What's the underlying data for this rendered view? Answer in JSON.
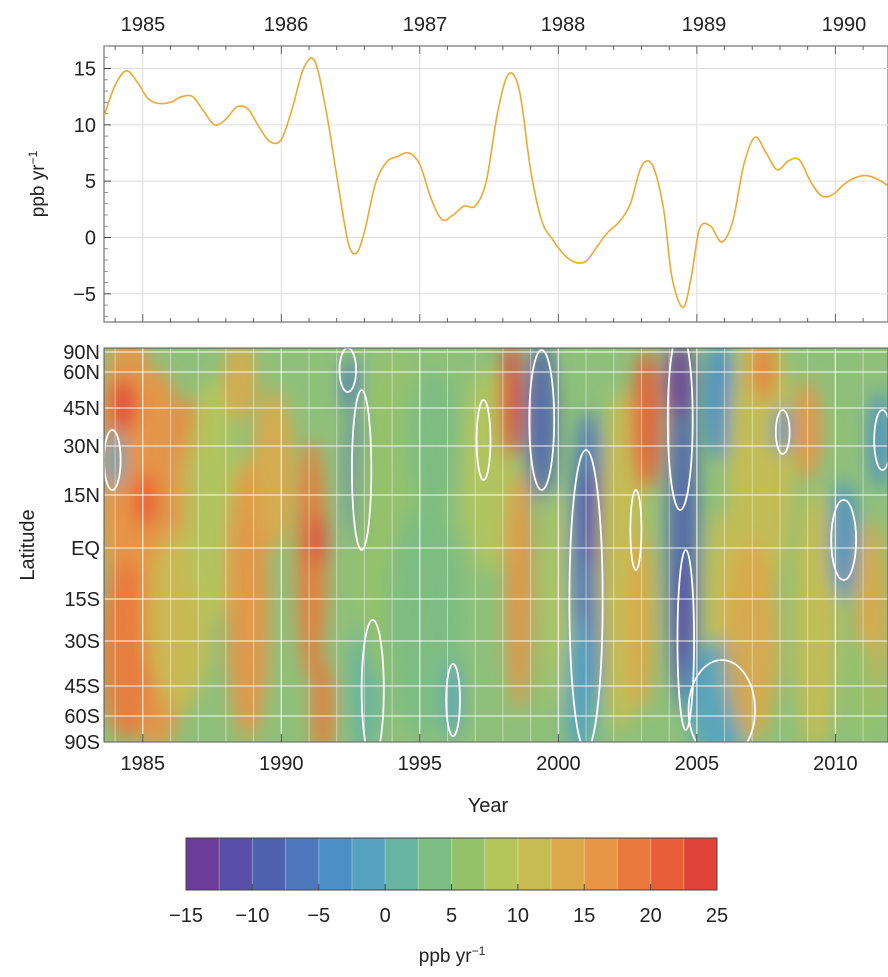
{
  "chart_data": [
    {
      "type": "line",
      "top_axis_label_values": [
        "1985",
        "1986",
        "1987",
        "1988",
        "1989",
        "1990"
      ],
      "ylabel": "ppb yr",
      "ylabel_exponent": "−1",
      "ylim": [
        -7.5,
        17
      ],
      "yticks": [
        "15",
        "10",
        "5",
        "0",
        "−5"
      ],
      "grid": true,
      "line_color": "#f0a830",
      "series": [
        {
          "x": [
            1983.6,
            1984.0,
            1984.4,
            1984.8,
            1985.2,
            1985.6,
            1986.0,
            1986.4,
            1986.8,
            1987.2,
            1987.6,
            1988.0,
            1988.4,
            1988.8,
            1989.2,
            1989.6,
            1990.0,
            1990.4,
            1990.8,
            1991.2,
            1991.6,
            1992.0,
            1992.4,
            1992.7,
            1993.0,
            1993.4,
            1993.8,
            1994.2,
            1994.6,
            1995.0,
            1995.4,
            1995.8,
            1996.2,
            1996.6,
            1997.0,
            1997.4,
            1997.8,
            1998.2,
            1998.6,
            1999.0,
            1999.4,
            1999.8,
            2000.2,
            2000.6,
            2001.0,
            2001.4,
            2001.8,
            2002.2,
            2002.6,
            2003.0,
            2003.4,
            2003.8,
            2004.1,
            2004.5,
            2004.8,
            2005.1,
            2005.5,
            2005.9,
            2006.3,
            2006.7,
            2007.1,
            2007.5,
            2007.9,
            2008.3,
            2008.7,
            2009.1,
            2009.5,
            2009.9,
            2010.3,
            2010.7,
            2011.1,
            2011.5,
            2011.9
          ],
          "values": [
            10.8,
            13.5,
            14.8,
            13.8,
            12.3,
            11.9,
            12.0,
            12.5,
            12.5,
            11.2,
            10.0,
            10.5,
            11.6,
            11.4,
            9.8,
            8.5,
            8.7,
            11.5,
            15.0,
            15.7,
            11.5,
            5.5,
            -0.3,
            -1.4,
            0.5,
            4.8,
            6.7,
            7.2,
            7.5,
            6.5,
            3.5,
            1.6,
            2.0,
            2.8,
            2.8,
            5.0,
            11.0,
            14.5,
            13.0,
            6.0,
            1.5,
            -0.2,
            -1.5,
            -2.2,
            -2.1,
            -0.8,
            0.5,
            1.4,
            3.0,
            6.3,
            6.4,
            2.5,
            -3.5,
            -6.2,
            -3.5,
            0.8,
            1.0,
            -0.4,
            1.5,
            6.5,
            8.9,
            7.5,
            6.0,
            6.8,
            6.9,
            5.0,
            3.7,
            3.8,
            4.7,
            5.3,
            5.5,
            5.2,
            4.6
          ]
        }
      ]
    },
    {
      "type": "heatmap",
      "xlabel": "Year",
      "ylabel": "Latitude",
      "xlim": [
        1983.6,
        2011.9
      ],
      "xticks": [
        "1985",
        "1990",
        "1995",
        "2000",
        "2005",
        "2010"
      ],
      "yticks": [
        "90N",
        "60N",
        "45N",
        "30N",
        "15N",
        "EQ",
        "15S",
        "30S",
        "45S",
        "60S",
        "90S"
      ],
      "contour_line_color": "#ffffff",
      "values_description_levels": [
        -15,
        -12.5,
        -10,
        -7.5,
        -5,
        -2.5,
        0,
        2.5,
        5,
        7.5,
        10,
        12.5,
        15,
        17.5,
        20,
        22.5,
        25
      ]
    }
  ],
  "colorbar": {
    "label": "ppb yr",
    "label_exponent": "−1",
    "ticks": [
      "−15",
      "−10",
      "−5",
      "0",
      "5",
      "10",
      "15",
      "20",
      "25"
    ],
    "colors": [
      "#6a3d9a",
      "#5a4fa8",
      "#4f62b0",
      "#4d78bc",
      "#4a8fc8",
      "#55a3c0",
      "#68b4a0",
      "#7cbd84",
      "#95c26a",
      "#b4c55c",
      "#c8bd52",
      "#dba84a",
      "#e89545",
      "#ea7a3c",
      "#e85e38",
      "#e0433a"
    ]
  }
}
